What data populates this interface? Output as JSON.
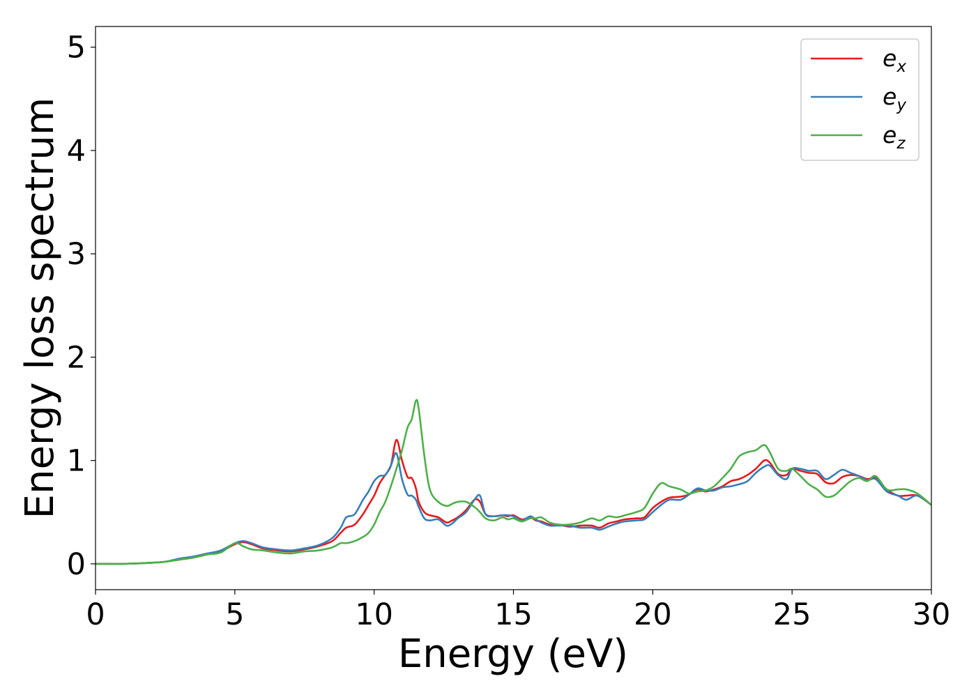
{
  "chart_data": {
    "type": "line",
    "xlabel": "Energy (eV)",
    "ylabel": "Energy loss spectrum",
    "xlim": [
      0,
      30
    ],
    "ylim": [
      -0.25,
      5.2
    ],
    "xticks": [
      "0",
      "5",
      "10",
      "15",
      "20",
      "25",
      "30"
    ],
    "yticks": [
      "0",
      "1",
      "2",
      "3",
      "4",
      "5"
    ],
    "grid": false,
    "legend_position": "top-right",
    "x": [
      0,
      1,
      2,
      2.5,
      3,
      3.5,
      4,
      4.5,
      5,
      5.3,
      5.6,
      6,
      6.5,
      7,
      7.5,
      8,
      8.5,
      8.8,
      9.0,
      9.3,
      9.6,
      9.8,
      10.0,
      10.2,
      10.4,
      10.6,
      10.8,
      11.0,
      11.2,
      11.35,
      11.5,
      11.6,
      11.8,
      12.0,
      12.3,
      12.6,
      12.8,
      13.0,
      13.3,
      13.6,
      13.8,
      14.0,
      14.3,
      14.6,
      14.8,
      15.0,
      15.3,
      15.6,
      15.8,
      16.0,
      16.3,
      16.6,
      17.0,
      17.4,
      17.8,
      18.1,
      18.4,
      18.7,
      19.0,
      19.4,
      19.7,
      20.0,
      20.3,
      20.6,
      21.0,
      21.3,
      21.6,
      21.9,
      22.2,
      22.5,
      22.8,
      23.1,
      23.4,
      23.7,
      24.0,
      24.2,
      24.5,
      24.8,
      25.0,
      25.3,
      25.6,
      25.9,
      26.2,
      26.5,
      26.8,
      27.1,
      27.4,
      27.7,
      28.0,
      28.4,
      28.8,
      29.1,
      29.5,
      30.0
    ],
    "series": [
      {
        "name": "e_x",
        "label_base": "e",
        "label_sub": "x",
        "color": "#e41a1c",
        "values": [
          0.0,
          0.0,
          0.01,
          0.02,
          0.04,
          0.06,
          0.09,
          0.12,
          0.19,
          0.21,
          0.19,
          0.15,
          0.13,
          0.12,
          0.14,
          0.17,
          0.22,
          0.3,
          0.35,
          0.38,
          0.48,
          0.57,
          0.66,
          0.78,
          0.86,
          0.95,
          1.2,
          1.0,
          0.84,
          0.83,
          0.73,
          0.6,
          0.5,
          0.47,
          0.45,
          0.4,
          0.42,
          0.45,
          0.52,
          0.62,
          0.6,
          0.48,
          0.46,
          0.47,
          0.46,
          0.47,
          0.43,
          0.45,
          0.42,
          0.41,
          0.38,
          0.38,
          0.36,
          0.37,
          0.37,
          0.35,
          0.39,
          0.41,
          0.43,
          0.44,
          0.45,
          0.54,
          0.6,
          0.64,
          0.65,
          0.67,
          0.72,
          0.7,
          0.72,
          0.75,
          0.8,
          0.82,
          0.86,
          0.92,
          1.0,
          0.98,
          0.87,
          0.86,
          0.92,
          0.9,
          0.88,
          0.87,
          0.79,
          0.78,
          0.84,
          0.86,
          0.85,
          0.82,
          0.83,
          0.72,
          0.66,
          0.66,
          0.66,
          0.57
        ]
      },
      {
        "name": "e_y",
        "label_base": "e",
        "label_sub": "y",
        "color": "#377eb8",
        "values": [
          0.0,
          0.0,
          0.01,
          0.02,
          0.05,
          0.07,
          0.1,
          0.13,
          0.2,
          0.22,
          0.2,
          0.16,
          0.14,
          0.13,
          0.15,
          0.18,
          0.25,
          0.35,
          0.45,
          0.48,
          0.62,
          0.7,
          0.8,
          0.85,
          0.86,
          0.95,
          1.07,
          0.82,
          0.67,
          0.66,
          0.62,
          0.55,
          0.44,
          0.42,
          0.43,
          0.37,
          0.39,
          0.44,
          0.5,
          0.62,
          0.66,
          0.48,
          0.46,
          0.47,
          0.47,
          0.46,
          0.42,
          0.46,
          0.43,
          0.4,
          0.37,
          0.37,
          0.37,
          0.35,
          0.35,
          0.33,
          0.36,
          0.39,
          0.41,
          0.42,
          0.43,
          0.5,
          0.57,
          0.62,
          0.62,
          0.67,
          0.73,
          0.71,
          0.71,
          0.74,
          0.75,
          0.77,
          0.8,
          0.88,
          0.94,
          0.95,
          0.86,
          0.82,
          0.92,
          0.92,
          0.9,
          0.9,
          0.82,
          0.86,
          0.91,
          0.88,
          0.85,
          0.81,
          0.82,
          0.7,
          0.66,
          0.62,
          0.66,
          0.57
        ]
      },
      {
        "name": "e_z",
        "label_base": "e",
        "label_sub": "z",
        "color": "#4daf4a",
        "values": [
          0.0,
          0.0,
          0.01,
          0.02,
          0.04,
          0.06,
          0.09,
          0.11,
          0.2,
          0.17,
          0.14,
          0.13,
          0.11,
          0.1,
          0.12,
          0.13,
          0.16,
          0.2,
          0.2,
          0.22,
          0.26,
          0.3,
          0.38,
          0.5,
          0.6,
          0.75,
          0.92,
          1.1,
          1.32,
          1.4,
          1.58,
          1.5,
          1.05,
          0.72,
          0.6,
          0.56,
          0.58,
          0.6,
          0.6,
          0.55,
          0.5,
          0.44,
          0.42,
          0.45,
          0.43,
          0.44,
          0.41,
          0.44,
          0.44,
          0.45,
          0.4,
          0.38,
          0.38,
          0.4,
          0.44,
          0.42,
          0.46,
          0.45,
          0.47,
          0.5,
          0.54,
          0.68,
          0.78,
          0.75,
          0.72,
          0.68,
          0.7,
          0.71,
          0.75,
          0.83,
          0.92,
          1.04,
          1.08,
          1.1,
          1.15,
          1.08,
          0.92,
          0.9,
          0.92,
          0.85,
          0.77,
          0.72,
          0.65,
          0.66,
          0.73,
          0.8,
          0.83,
          0.8,
          0.85,
          0.72,
          0.72,
          0.72,
          0.68,
          0.57
        ]
      }
    ]
  }
}
